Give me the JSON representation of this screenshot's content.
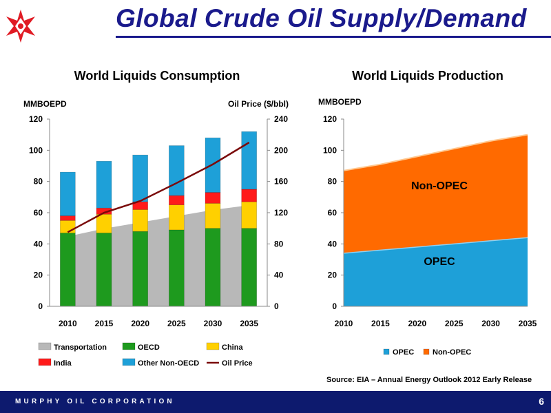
{
  "page": {
    "title": "Global Crude Oil Supply/Demand",
    "source": "Source: EIA – Annual Energy Outlook 2012 Early Release",
    "footer_company": "MURPHY OIL CORPORATION",
    "page_number": "6",
    "colors": {
      "title": "#1a1a8c",
      "footer": "#0d1a6e",
      "logo": "#e01b24"
    }
  },
  "chart_data": [
    {
      "type": "bar",
      "title": "World Liquids Consumption",
      "ylabel": "MMBOEPD",
      "y2label": "Oil Price ($/bbl)",
      "categories": [
        "2010",
        "2015",
        "2020",
        "2025",
        "2030",
        "2035"
      ],
      "ylim": [
        0,
        120
      ],
      "y2lim": [
        0,
        240
      ],
      "yticks": [
        0,
        20,
        40,
        60,
        80,
        100,
        120
      ],
      "y2ticks": [
        0,
        40,
        80,
        120,
        160,
        200,
        240
      ],
      "series": [
        {
          "name": "Transportation",
          "kind": "area",
          "color": "#b8b8b8",
          "values": [
            45,
            50,
            54,
            58,
            62,
            65
          ]
        },
        {
          "name": "OECD",
          "kind": "stacked-bar",
          "color": "#1e9a1e",
          "values": [
            47,
            47,
            48,
            49,
            50,
            50
          ]
        },
        {
          "name": "China",
          "kind": "stacked-bar",
          "color": "#ffd000",
          "values": [
            8,
            12,
            14,
            16,
            16,
            17
          ]
        },
        {
          "name": "India",
          "kind": "stacked-bar",
          "color": "#ff1a1a",
          "values": [
            3,
            4,
            5,
            6,
            7,
            8
          ]
        },
        {
          "name": "Other Non-OECD",
          "kind": "stacked-bar",
          "color": "#1ea0d8",
          "values": [
            28,
            30,
            30,
            32,
            35,
            37
          ]
        },
        {
          "name": "Oil Price",
          "kind": "line",
          "axis": "right",
          "color": "#7a0a0a",
          "values": [
            95,
            120,
            135,
            158,
            182,
            210
          ]
        }
      ],
      "legend": "bottom",
      "grid": false
    },
    {
      "type": "area",
      "title": "World Liquids Production",
      "ylabel": "MMBOEPD",
      "x": [
        "2010",
        "2015",
        "2020",
        "2025",
        "2030",
        "2035"
      ],
      "ylim": [
        0,
        120
      ],
      "yticks": [
        0,
        20,
        40,
        60,
        80,
        100,
        120
      ],
      "series": [
        {
          "name": "OPEC",
          "color": "#1ea0d8",
          "values": [
            34,
            36,
            38,
            40,
            42,
            44
          ]
        },
        {
          "name": "Non-OPEC",
          "color": "#ff6a00",
          "values": [
            53,
            55,
            58,
            61,
            64,
            66
          ]
        }
      ],
      "annotations": [
        "Non-OPEC",
        "OPEC"
      ],
      "legend": "bottom",
      "grid": false
    }
  ]
}
